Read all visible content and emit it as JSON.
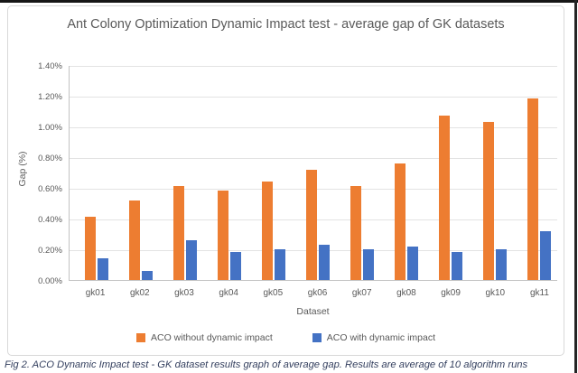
{
  "page": {
    "caption": "Fig 2. ACO Dynamic Impact test - GK dataset results graph of average gap. Results are average of 10 algorithm runs"
  },
  "chart_data": {
    "type": "bar",
    "title": "Ant Colony Optimization Dynamic Impact test - average gap of GK datasets",
    "xlabel": "Dataset",
    "ylabel": "Gap (%)",
    "ylim": [
      0,
      1.4
    ],
    "ytick_step": 0.2,
    "ytick_labels": [
      "0.00%",
      "0.20%",
      "0.40%",
      "0.60%",
      "0.80%",
      "1.00%",
      "1.20%",
      "1.40%"
    ],
    "grid": true,
    "legend_position": "bottom",
    "categories": [
      "gk01",
      "gk02",
      "gk03",
      "gk04",
      "gk05",
      "gk06",
      "gk07",
      "gk08",
      "gk09",
      "gk10",
      "gk11"
    ],
    "series": [
      {
        "name": "ACO without dynamic impact",
        "color": "#ED7D31",
        "values": [
          0.41,
          0.52,
          0.61,
          0.58,
          0.64,
          0.72,
          0.61,
          0.76,
          1.07,
          1.03,
          1.18
        ]
      },
      {
        "name": "ACO with dynamic impact",
        "color": "#4472C4",
        "values": [
          0.14,
          0.06,
          0.26,
          0.18,
          0.2,
          0.23,
          0.2,
          0.22,
          0.18,
          0.2,
          0.32
        ]
      }
    ]
  },
  "colors": {
    "bar_orange": "#ED7D31",
    "bar_blue": "#4472C4",
    "chart_text": "#595959",
    "gridline": "#E3E3E3",
    "axis_line": "#C3C3C3",
    "caption_text": "#333F5E",
    "frame_border": "#D8D8D8"
  }
}
